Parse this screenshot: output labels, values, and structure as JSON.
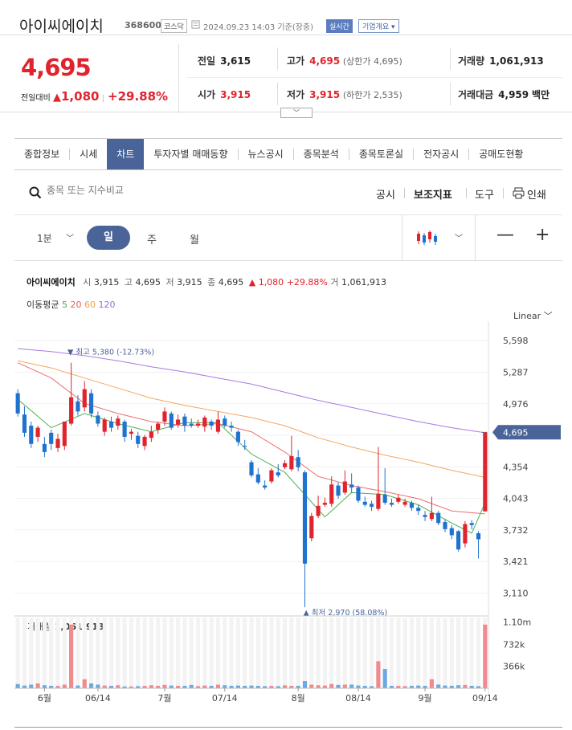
{
  "header": {
    "stock_name": "아이씨에이치",
    "stock_code": "368600",
    "market": "코스닥",
    "timestamp": "2024.09.23 14:03 기준(장중)",
    "realtime": "실시간",
    "company_overview": "기업개요"
  },
  "quote": {
    "price": "4,695",
    "change_label": "전일대비",
    "change": "1,080",
    "change_pct": "+29.88%",
    "prev_close_label": "전일",
    "prev_close": "3,615",
    "high_label": "고가",
    "high": "4,695",
    "upper_limit": "(상한가 4,695)",
    "volume_label": "거래량",
    "volume": "1,061,913",
    "open_label": "시가",
    "open": "3,915",
    "low_label": "저가",
    "low": "3,915",
    "lower_limit": "(하한가 2,535)",
    "value_label": "거래대금",
    "value": "4,959",
    "value_unit": "백만"
  },
  "tabs": [
    {
      "label": "종합정보",
      "active": false
    },
    {
      "label": "시세",
      "active": false
    },
    {
      "label": "차트",
      "active": true
    },
    {
      "label": "투자자별 매매동향",
      "active": false
    },
    {
      "label": "뉴스공시",
      "active": false
    },
    {
      "label": "종목분석",
      "active": false
    },
    {
      "label": "종목토론실",
      "active": false
    },
    {
      "label": "전자공시",
      "active": false
    },
    {
      "label": "공매도현황",
      "active": false
    }
  ],
  "toolbar": {
    "search_placeholder": "종목 또는 지수비교",
    "disclosure": "공시",
    "indicators": "보조지표",
    "tools": "도구",
    "print": "인쇄"
  },
  "period": {
    "minute_select": "1분",
    "day": "일",
    "week": "주",
    "month": "월",
    "zoom_out": "—",
    "zoom_in": "+"
  },
  "legend": {
    "name": "아이씨에이치",
    "open_k": "시",
    "open": "3,915",
    "high_k": "고",
    "high": "4,695",
    "low_k": "저",
    "low": "3,915",
    "close_k": "종",
    "close": "4,695",
    "change": "▲ 1,080",
    "change_pct": "+29.88%",
    "vol_k": "거",
    "volume": "1,061,913",
    "ma_label": "이동평균",
    "ma": [
      {
        "period": "5",
        "color": "#4caf50"
      },
      {
        "period": "20",
        "color": "#e85a5a"
      },
      {
        "period": "60",
        "color": "#f0a050"
      },
      {
        "period": "120",
        "color": "#9b6bd9"
      }
    ],
    "scale": "Linear"
  },
  "colors": {
    "up": "#e0232d",
    "down": "#1f73cf",
    "accent": "#4a6499"
  },
  "chart_data": {
    "type": "candlestick",
    "ylim": [
      2900,
      5750
    ],
    "yticks": [
      "5,598",
      "5,287",
      "4,976",
      "4,665",
      "4,354",
      "4,043",
      "3,732",
      "3,421",
      "3,110"
    ],
    "ytick_values": [
      5598,
      5287,
      4976,
      4665,
      4354,
      4043,
      3732,
      3421,
      3110
    ],
    "current_price_label": "4,695",
    "current_price": 4695,
    "high_annotation": "최고 5,380 (-12.73%)",
    "low_annotation": "최저 2,970 (58.08%)",
    "xticks": [
      "6월",
      "06/14",
      "7월",
      "07/14",
      "8월",
      "08/14",
      "9월",
      "09/14"
    ],
    "xtick_index": [
      4,
      12,
      22,
      31,
      42,
      51,
      61,
      70
    ],
    "candles": [
      [
        5080,
        4880,
        5120,
        4850
      ],
      [
        4870,
        4690,
        4950,
        4650
      ],
      [
        4760,
        4580,
        4800,
        4540
      ],
      [
        4650,
        4740,
        4760,
        4600
      ],
      [
        4580,
        4500,
        4650,
        4450
      ],
      [
        4690,
        4580,
        4720,
        4520
      ],
      [
        4540,
        4630,
        4680,
        4500
      ],
      [
        4560,
        4800,
        4800,
        4520
      ],
      [
        4780,
        5040,
        5380,
        4760
      ],
      [
        5000,
        4900,
        5060,
        4860
      ],
      [
        4940,
        5120,
        5200,
        4900
      ],
      [
        5080,
        4880,
        5120,
        4840
      ],
      [
        4860,
        4780,
        4900,
        4750
      ],
      [
        4700,
        4820,
        4840,
        4660
      ],
      [
        4800,
        4740,
        4850,
        4700
      ],
      [
        4760,
        4830,
        4860,
        4720
      ],
      [
        4800,
        4650,
        4820,
        4600
      ],
      [
        4680,
        4700,
        4730,
        4620
      ],
      [
        4660,
        4580,
        4700,
        4540
      ],
      [
        4560,
        4650,
        4670,
        4520
      ],
      [
        4640,
        4700,
        4760,
        4600
      ],
      [
        4720,
        4780,
        4800,
        4680
      ],
      [
        4800,
        4900,
        4940,
        4760
      ],
      [
        4880,
        4740,
        4900,
        4720
      ],
      [
        4770,
        4820,
        4870,
        4740
      ],
      [
        4850,
        4760,
        4880,
        4700
      ],
      [
        4780,
        4760,
        4830,
        4740
      ],
      [
        4760,
        4780,
        4820,
        4740
      ],
      [
        4750,
        4840,
        4860,
        4700
      ],
      [
        4800,
        4760,
        4820,
        4720
      ],
      [
        4700,
        4820,
        4900,
        4680
      ],
      [
        4830,
        4760,
        4860,
        4740
      ],
      [
        4760,
        4740,
        4800,
        4700
      ],
      [
        4700,
        4600,
        4720,
        4560
      ],
      [
        4560,
        4550,
        4620,
        4520
      ],
      [
        4400,
        4270,
        4420,
        4250
      ],
      [
        4280,
        4200,
        4340,
        4180
      ],
      [
        4170,
        4150,
        4220,
        4130
      ],
      [
        4210,
        4320,
        4340,
        4190
      ],
      [
        4300,
        4270,
        4380,
        4250
      ],
      [
        4350,
        4390,
        4420,
        4330
      ],
      [
        4330,
        4460,
        4660,
        4310
      ],
      [
        4450,
        4350,
        4520,
        4310
      ],
      [
        4300,
        3400,
        4320,
        2970
      ],
      [
        3650,
        3870,
        3900,
        3620
      ],
      [
        3870,
        3970,
        4070,
        3850
      ],
      [
        3980,
        4000,
        4050,
        3960
      ],
      [
        3990,
        4180,
        4260,
        3960
      ],
      [
        4170,
        4070,
        4200,
        4040
      ],
      [
        4100,
        4210,
        4320,
        4080
      ],
      [
        4180,
        4150,
        4290,
        4100
      ],
      [
        4150,
        4020,
        4170,
        4000
      ],
      [
        4010,
        3980,
        4060,
        3960
      ],
      [
        3990,
        3960,
        4020,
        3920
      ],
      [
        3940,
        4090,
        4550,
        3920
      ],
      [
        4080,
        4000,
        4340,
        3980
      ],
      [
        4000,
        3980,
        4040,
        3960
      ],
      [
        4010,
        4050,
        4080,
        3990
      ],
      [
        3980,
        4010,
        4040,
        3960
      ],
      [
        4000,
        3950,
        4020,
        3920
      ],
      [
        3950,
        3920,
        3980,
        3880
      ],
      [
        3880,
        3860,
        3920,
        3820
      ],
      [
        3840,
        3900,
        4060,
        3820
      ],
      [
        3900,
        3800,
        3920,
        3780
      ],
      [
        3810,
        3740,
        3840,
        3710
      ],
      [
        3750,
        3680,
        3780,
        3640
      ],
      [
        3720,
        3540,
        3730,
        3520
      ],
      [
        3600,
        3790,
        3820,
        3560
      ],
      [
        3800,
        3780,
        3830,
        3740
      ],
      [
        3700,
        3640,
        3720,
        3450
      ],
      [
        3915,
        4695,
        4695,
        3915
      ]
    ],
    "ma": {
      "5": [
        [
          0,
          5020
        ],
        [
          5,
          4740
        ],
        [
          10,
          4880
        ],
        [
          15,
          4780
        ],
        [
          20,
          4700
        ],
        [
          25,
          4790
        ],
        [
          30,
          4790
        ],
        [
          35,
          4480
        ],
        [
          40,
          4300
        ],
        [
          43,
          4080
        ],
        [
          46,
          3860
        ],
        [
          50,
          4100
        ],
        [
          55,
          4080
        ],
        [
          60,
          3980
        ],
        [
          65,
          3800
        ],
        [
          68,
          3700
        ],
        [
          70,
          4000
        ]
      ],
      "20": [
        [
          0,
          5380
        ],
        [
          5,
          5230
        ],
        [
          10,
          4980
        ],
        [
          15,
          4880
        ],
        [
          20,
          4800
        ],
        [
          25,
          4760
        ],
        [
          30,
          4780
        ],
        [
          35,
          4700
        ],
        [
          40,
          4500
        ],
        [
          45,
          4260
        ],
        [
          50,
          4170
        ],
        [
          55,
          4110
        ],
        [
          60,
          4040
        ],
        [
          65,
          3920
        ],
        [
          70,
          3890
        ]
      ],
      "60": [
        [
          0,
          5400
        ],
        [
          5,
          5330
        ],
        [
          10,
          5230
        ],
        [
          15,
          5130
        ],
        [
          20,
          5030
        ],
        [
          25,
          4960
        ],
        [
          30,
          4900
        ],
        [
          35,
          4840
        ],
        [
          40,
          4760
        ],
        [
          45,
          4640
        ],
        [
          50,
          4550
        ],
        [
          55,
          4470
        ],
        [
          60,
          4400
        ],
        [
          65,
          4320
        ],
        [
          70,
          4250
        ]
      ],
      "120": [
        [
          0,
          5520
        ],
        [
          5,
          5490
        ],
        [
          10,
          5450
        ],
        [
          15,
          5400
        ],
        [
          20,
          5340
        ],
        [
          25,
          5290
        ],
        [
          30,
          5230
        ],
        [
          35,
          5170
        ],
        [
          40,
          5090
        ],
        [
          45,
          5010
        ],
        [
          50,
          4940
        ],
        [
          55,
          4870
        ],
        [
          60,
          4800
        ],
        [
          65,
          4740
        ],
        [
          70,
          4690
        ]
      ]
    },
    "volume": {
      "label": "거래량",
      "value": "1,061,913",
      "yticks": [
        "1.10m",
        "732k",
        "366k"
      ],
      "ytick_values": [
        1100000,
        732000,
        366000
      ],
      "max": 1150000,
      "bars": [
        70000,
        45000,
        60000,
        80000,
        50000,
        40000,
        40000,
        60000,
        1060000,
        45000,
        150000,
        80000,
        60000,
        45000,
        40000,
        50000,
        30000,
        30000,
        35000,
        40000,
        50000,
        40000,
        55000,
        45000,
        40000,
        40000,
        55000,
        35000,
        45000,
        40000,
        60000,
        50000,
        40000,
        45000,
        40000,
        45000,
        40000,
        35000,
        40000,
        35000,
        50000,
        40000,
        40000,
        120000,
        60000,
        50000,
        45000,
        70000,
        55000,
        60000,
        60000,
        45000,
        40000,
        35000,
        450000,
        320000,
        40000,
        40000,
        35000,
        40000,
        45000,
        40000,
        150000,
        60000,
        45000,
        40000,
        50000,
        55000,
        40000,
        35000,
        1060000
      ]
    }
  }
}
